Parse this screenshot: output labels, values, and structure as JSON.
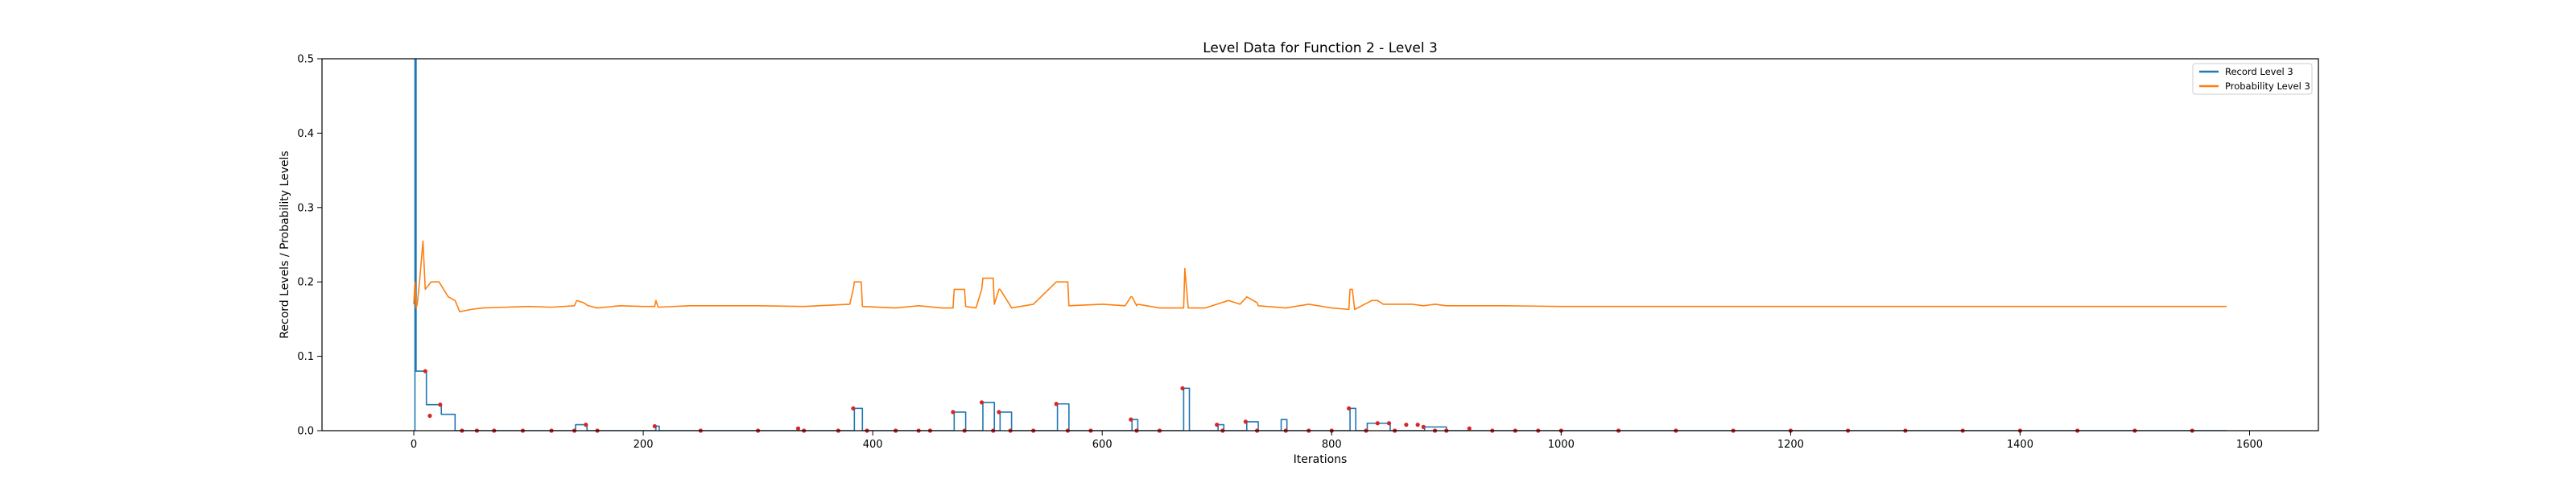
{
  "chart_data": {
    "type": "line",
    "title": "Level Data for Function 2 - Level 3",
    "xlabel": "Iterations",
    "ylabel": "Record Levels / Probability Levels",
    "xlim": [
      -80,
      1660
    ],
    "ylim": [
      0,
      0.5
    ],
    "x_ticks": [
      0,
      200,
      400,
      600,
      800,
      1000,
      1200,
      1400,
      1600
    ],
    "y_ticks": [
      0.0,
      0.1,
      0.2,
      0.3,
      0.4,
      0.5
    ],
    "x_tick_labels": [
      "0",
      "200",
      "400",
      "600",
      "800",
      "1000",
      "1200",
      "1400",
      "1600"
    ],
    "y_tick_labels": [
      "0.0",
      "0.1",
      "0.2",
      "0.3",
      "0.4",
      "0.5"
    ],
    "grid": false,
    "legend_position": "top-right",
    "series": [
      {
        "name": "Record Level 3",
        "color": "#1f77b4",
        "style": "step",
        "x": [
          0,
          1,
          2,
          3,
          10,
          11,
          15,
          23,
          24,
          35,
          36,
          42,
          140,
          141,
          150,
          151,
          210,
          211,
          214,
          383,
          384,
          390,
          391,
          470,
          471,
          480,
          481,
          495,
          496,
          505,
          506,
          510,
          511,
          520,
          521,
          560,
          561,
          570,
          571,
          625,
          626,
          630,
          631,
          670,
          671,
          675,
          676,
          700,
          701,
          705,
          706,
          725,
          726,
          735,
          736,
          755,
          756,
          760,
          761,
          815,
          816,
          820,
          821,
          830,
          831,
          850,
          851,
          880,
          881,
          900,
          1580
        ],
        "y": [
          0,
          0.5,
          0.08,
          0.08,
          0.08,
          0.035,
          0.035,
          0.035,
          0.022,
          0.022,
          0.0,
          0.0,
          0.0,
          0.008,
          0.008,
          0.0,
          0.0,
          0.006,
          0.0,
          0.0,
          0.03,
          0.03,
          0.0,
          0.0,
          0.025,
          0.025,
          0.0,
          0.0,
          0.038,
          0.038,
          0.0,
          0.0,
          0.025,
          0.025,
          0.0,
          0.0,
          0.036,
          0.036,
          0.0,
          0.0,
          0.015,
          0.015,
          0.0,
          0.0,
          0.057,
          0.057,
          0.0,
          0.0,
          0.008,
          0.008,
          0.0,
          0.0,
          0.012,
          0.012,
          0.0,
          0.0,
          0.015,
          0.015,
          0.0,
          0.0,
          0.03,
          0.03,
          0.0,
          0.0,
          0.01,
          0.01,
          0.0,
          0.0,
          0.005,
          0.0,
          0.0
        ]
      },
      {
        "name": "Probability Level 3",
        "color": "#ff7f0e",
        "style": "line",
        "x": [
          0,
          1,
          2,
          3,
          5,
          8,
          10,
          15,
          22,
          30,
          36,
          40,
          50,
          60,
          80,
          100,
          120,
          140,
          142,
          148,
          152,
          160,
          180,
          200,
          210,
          211,
          213,
          240,
          300,
          340,
          380,
          383,
          384,
          390,
          391,
          420,
          440,
          460,
          470,
          471,
          480,
          481,
          490,
          495,
          496,
          505,
          506,
          510,
          511,
          520,
          521,
          540,
          560,
          561,
          570,
          571,
          600,
          620,
          625,
          626,
          630,
          631,
          650,
          670,
          671,
          672,
          675,
          690,
          700,
          710,
          720,
          725,
          726,
          735,
          736,
          760,
          780,
          800,
          815,
          816,
          818,
          820,
          835,
          840,
          845,
          860,
          870,
          880,
          890,
          900,
          950,
          1000,
          1100,
          1200,
          1300,
          1400,
          1500,
          1580
        ],
        "y": [
          0.17,
          0.2,
          0.165,
          0.17,
          0.2,
          0.255,
          0.19,
          0.2,
          0.2,
          0.18,
          0.175,
          0.16,
          0.163,
          0.165,
          0.166,
          0.167,
          0.166,
          0.168,
          0.175,
          0.172,
          0.168,
          0.165,
          0.168,
          0.167,
          0.167,
          0.175,
          0.166,
          0.168,
          0.168,
          0.167,
          0.17,
          0.19,
          0.2,
          0.2,
          0.167,
          0.165,
          0.168,
          0.165,
          0.165,
          0.19,
          0.19,
          0.167,
          0.165,
          0.19,
          0.205,
          0.205,
          0.17,
          0.19,
          0.19,
          0.168,
          0.165,
          0.17,
          0.2,
          0.2,
          0.2,
          0.168,
          0.17,
          0.168,
          0.18,
          0.18,
          0.168,
          0.17,
          0.165,
          0.165,
          0.165,
          0.218,
          0.165,
          0.165,
          0.17,
          0.175,
          0.17,
          0.178,
          0.18,
          0.172,
          0.168,
          0.165,
          0.17,
          0.165,
          0.163,
          0.19,
          0.19,
          0.163,
          0.175,
          0.175,
          0.17,
          0.17,
          0.17,
          0.168,
          0.17,
          0.168,
          0.168,
          0.167,
          0.167,
          0.167,
          0.167,
          0.167,
          0.167,
          0.167
        ]
      }
    ],
    "markers": {
      "color": "#d62728",
      "x": [
        10,
        14,
        23,
        42,
        55,
        70,
        95,
        120,
        140,
        150,
        160,
        210,
        250,
        300,
        335,
        340,
        370,
        383,
        395,
        420,
        440,
        450,
        470,
        480,
        495,
        505,
        510,
        520,
        540,
        560,
        570,
        590,
        625,
        630,
        650,
        670,
        700,
        705,
        725,
        735,
        760,
        780,
        800,
        815,
        830,
        840,
        850,
        855,
        865,
        875,
        880,
        890,
        900,
        920,
        940,
        960,
        980,
        1000,
        1050,
        1100,
        1150,
        1200,
        1250,
        1300,
        1350,
        1400,
        1450,
        1500,
        1550
      ],
      "y": [
        0.08,
        0.02,
        0.035,
        0.0,
        0.0,
        0.0,
        0.0,
        0.0,
        0.0,
        0.008,
        0.0,
        0.006,
        0.0,
        0.0,
        0.003,
        0.0,
        0.0,
        0.03,
        0.0,
        0.0,
        0.0,
        0.0,
        0.025,
        0.0,
        0.038,
        0.0,
        0.025,
        0.0,
        0.0,
        0.036,
        0.0,
        0.0,
        0.015,
        0.0,
        0.0,
        0.057,
        0.008,
        0.0,
        0.012,
        0.0,
        0.0,
        0.0,
        0.0,
        0.03,
        0.0,
        0.01,
        0.01,
        0.0,
        0.008,
        0.008,
        0.005,
        0.0,
        0.0,
        0.003,
        0.0,
        0.0,
        0.0,
        0.0,
        0.0,
        0.0,
        0.0,
        0.0,
        0.0,
        0.0,
        0.0,
        0.0,
        0.0,
        0.0,
        0.0
      ]
    }
  }
}
